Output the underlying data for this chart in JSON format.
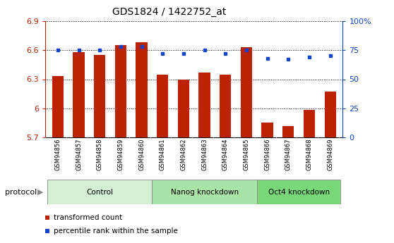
{
  "title": "GDS1824 / 1422752_at",
  "samples": [
    "GSM94856",
    "GSM94857",
    "GSM94858",
    "GSM94859",
    "GSM94860",
    "GSM94861",
    "GSM94862",
    "GSM94863",
    "GSM94864",
    "GSM94865",
    "GSM94866",
    "GSM94867",
    "GSM94868",
    "GSM94869"
  ],
  "bar_values": [
    6.33,
    6.58,
    6.55,
    6.65,
    6.68,
    6.35,
    6.3,
    6.37,
    6.35,
    6.63,
    5.85,
    5.82,
    5.98,
    6.17
  ],
  "dot_values": [
    75,
    75,
    75,
    78,
    78,
    72,
    72,
    75,
    72,
    75,
    68,
    67,
    69,
    70
  ],
  "ymin": 5.7,
  "ymax": 6.9,
  "ylim_right": [
    0,
    100
  ],
  "yticks_left": [
    5.7,
    6.0,
    6.3,
    6.6,
    6.9
  ],
  "yticks_right": [
    0,
    25,
    50,
    75,
    100
  ],
  "ytick_labels_left": [
    "5.7",
    "6",
    "6.3",
    "6.6",
    "6.9"
  ],
  "ytick_labels_right": [
    "0",
    "25",
    "50",
    "75",
    "100%"
  ],
  "bar_color": "#bb2200",
  "dot_color": "#1144cc",
  "groups": [
    {
      "label": "Control",
      "start": 0,
      "end": 5,
      "color": "#d4f0d4"
    },
    {
      "label": "Nanog knockdown",
      "start": 5,
      "end": 10,
      "color": "#a8e4a8"
    },
    {
      "label": "Oct4 knockdown",
      "start": 10,
      "end": 14,
      "color": "#78d878"
    }
  ],
  "protocol_label": "protocol",
  "legend_items": [
    {
      "label": "transformed count",
      "color": "#bb2200"
    },
    {
      "label": "percentile rank within the sample",
      "color": "#1144cc"
    }
  ],
  "bar_width": 0.55,
  "tick_bg_color": "#c8c8c8",
  "background_color": "#ffffff"
}
